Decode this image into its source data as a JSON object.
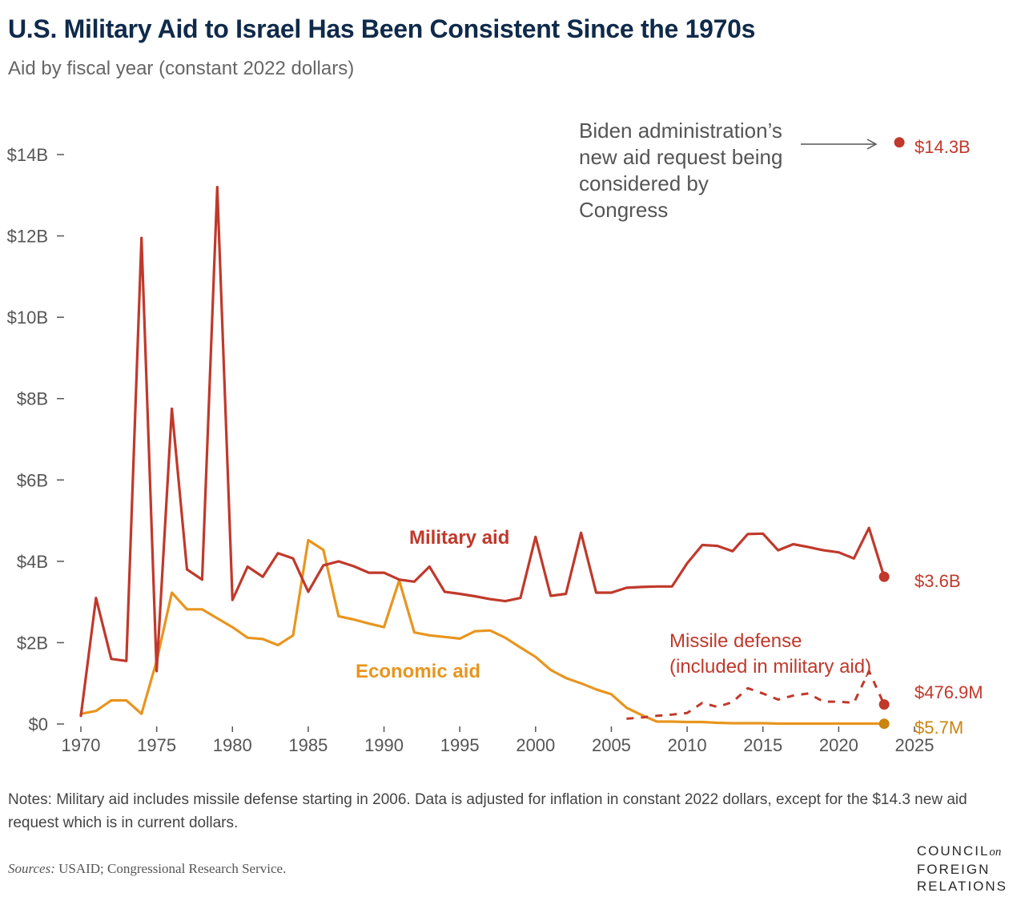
{
  "title": "U.S. Military Aid to Israel Has Been Consistent Since the 1970s",
  "subtitle": "Aid by fiscal year (constant 2022 dollars)",
  "notes": "Notes: Military aid includes missile defense starting in 2006. Data is adjusted for inflation in constant 2022 dollars, except for the $14.3 new aid request which is in current dollars.",
  "sources": {
    "label": "Sources:",
    "text": " USAID; Congressional Research Service."
  },
  "logo": {
    "line1": "COUNCIL",
    "on": "on",
    "line2": "FOREIGN",
    "line3": "RELATIONS"
  },
  "colors": {
    "military": "#c0392b",
    "economic": "#e8951e",
    "title": "#0f2a4a",
    "axis": "#555555"
  },
  "chart_data": {
    "type": "line",
    "xlim": [
      1970,
      2025
    ],
    "ylim": [
      0,
      14
    ],
    "x_ticks": [
      1970,
      1975,
      1980,
      1985,
      1990,
      1995,
      2000,
      2005,
      2010,
      2015,
      2020,
      2025
    ],
    "x_tick_labels": [
      "1970",
      "1975",
      "1980",
      "1985",
      "1990",
      "1995",
      "2000",
      "2005",
      "2010",
      "2015",
      "2020",
      "2025"
    ],
    "y_ticks": [
      0,
      2,
      4,
      6,
      8,
      10,
      12,
      14
    ],
    "y_tick_labels": [
      "$0",
      "$2B",
      "$4B",
      "$6B",
      "$8B",
      "$10B",
      "$12B",
      "$14B"
    ],
    "grid": false,
    "series": [
      {
        "name": "Military aid",
        "color": "#c0392b",
        "style": "solid",
        "x": [
          1970,
          1971,
          1972,
          1973,
          1974,
          1975,
          1976,
          1977,
          1978,
          1979,
          1980,
          1981,
          1982,
          1983,
          1984,
          1985,
          1986,
          1987,
          1988,
          1989,
          1990,
          1991,
          1992,
          1993,
          1994,
          1995,
          1996,
          1997,
          1998,
          1999,
          2000,
          2001,
          2002,
          2003,
          2004,
          2005,
          2006,
          2007,
          2008,
          2009,
          2010,
          2011,
          2012,
          2013,
          2014,
          2015,
          2016,
          2017,
          2018,
          2019,
          2020,
          2021,
          2022,
          2023
        ],
        "values": [
          0.2,
          3.1,
          1.6,
          1.55,
          11.95,
          1.3,
          7.75,
          3.8,
          3.55,
          13.2,
          3.05,
          3.87,
          3.62,
          4.2,
          4.07,
          3.25,
          3.9,
          4.0,
          3.88,
          3.72,
          3.72,
          3.55,
          3.5,
          3.87,
          3.25,
          3.2,
          3.14,
          3.07,
          3.02,
          3.1,
          4.6,
          3.15,
          3.2,
          4.7,
          3.23,
          3.23,
          3.35,
          3.37,
          3.38,
          3.38,
          3.95,
          4.4,
          4.38,
          4.25,
          4.67,
          4.68,
          4.27,
          4.42,
          4.35,
          4.27,
          4.22,
          4.07,
          4.82,
          3.62
        ]
      },
      {
        "name": "Economic aid",
        "color": "#e8951e",
        "style": "solid",
        "x": [
          1970,
          1971,
          1972,
          1973,
          1974,
          1975,
          1976,
          1977,
          1978,
          1979,
          1980,
          1981,
          1982,
          1983,
          1984,
          1985,
          1986,
          1987,
          1988,
          1989,
          1990,
          1991,
          1992,
          1993,
          1994,
          1995,
          1996,
          1997,
          1998,
          1999,
          2000,
          2001,
          2002,
          2003,
          2004,
          2005,
          2006,
          2007,
          2008,
          2009,
          2010,
          2011,
          2012,
          2013,
          2014,
          2015,
          2016,
          2017,
          2018,
          2019,
          2020,
          2021,
          2022,
          2023
        ],
        "values": [
          0.25,
          0.32,
          0.58,
          0.58,
          0.25,
          1.55,
          3.23,
          2.82,
          2.82,
          2.6,
          2.38,
          2.12,
          2.09,
          1.94,
          2.18,
          4.52,
          4.28,
          2.65,
          2.57,
          2.47,
          2.38,
          3.53,
          2.25,
          2.18,
          2.14,
          2.1,
          2.28,
          2.3,
          2.12,
          1.88,
          1.65,
          1.33,
          1.13,
          1.0,
          0.85,
          0.73,
          0.4,
          0.22,
          0.06,
          0.06,
          0.05,
          0.05,
          0.03,
          0.02,
          0.02,
          0.02,
          0.01,
          0.01,
          0.01,
          0.01,
          0.01,
          0.01,
          0.01,
          0.006
        ]
      },
      {
        "name": "Missile defense",
        "color": "#c0392b",
        "style": "dashed",
        "x": [
          2006,
          2007,
          2008,
          2009,
          2010,
          2011,
          2012,
          2013,
          2014,
          2015,
          2016,
          2017,
          2018,
          2019,
          2020,
          2021,
          2022,
          2023
        ],
        "values": [
          0.13,
          0.16,
          0.2,
          0.23,
          0.27,
          0.52,
          0.42,
          0.54,
          0.88,
          0.75,
          0.6,
          0.7,
          0.75,
          0.55,
          0.55,
          0.52,
          1.3,
          0.48
        ]
      },
      {
        "name": "Biden administration's new aid request",
        "color": "#c0392b",
        "style": "point",
        "x": [
          2024
        ],
        "values": [
          14.3
        ]
      }
    ],
    "end_points": [
      {
        "series": "Biden administration's new aid request",
        "x": 2024,
        "y": 14.3,
        "label": "$14.3B",
        "color": "#c0392b"
      },
      {
        "series": "Military aid",
        "x": 2023,
        "y": 3.62,
        "label": "$3.6B",
        "color": "#c0392b"
      },
      {
        "series": "Missile defense",
        "x": 2023,
        "y": 0.48,
        "label": "$476.9M",
        "color": "#c0392b"
      },
      {
        "series": "Economic aid",
        "x": 2023,
        "y": 0.006,
        "label": "$5.7M",
        "color": "#c8850f"
      }
    ],
    "annotations": [
      {
        "text": "Biden administration’s new aid request being considered by Congress",
        "lines": [
          "Biden administration’s",
          "new aid request being",
          "considered by",
          "Congress"
        ]
      },
      {
        "text": "Military aid",
        "lines": [
          "Military aid"
        ],
        "color": "#c0392b"
      },
      {
        "text": "Economic aid",
        "lines": [
          "Economic aid"
        ],
        "color": "#e8951e"
      },
      {
        "text": "Missile defense (included in military aid)",
        "lines": [
          "Missile defense",
          "(included in military aid)"
        ],
        "color": "#c0392b"
      }
    ]
  }
}
